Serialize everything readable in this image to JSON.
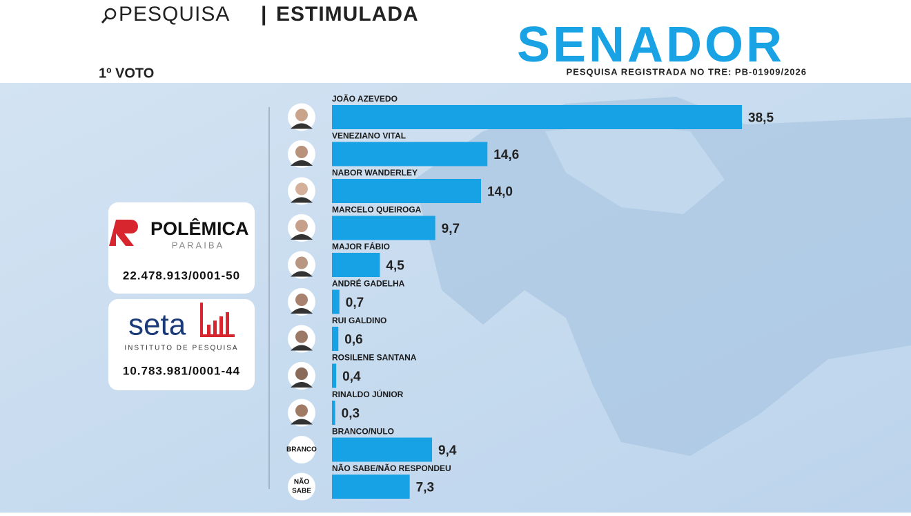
{
  "header": {
    "search": "PESQUISA",
    "separator": "|",
    "kind": "ESTIMULADA",
    "office": "SENADOR",
    "registration": "PESQUISA REGISTRADA NO TRE: PB-01909/2026",
    "round": "1º VOTO"
  },
  "sponsors": [
    {
      "name": "POLÊMICA",
      "sub": "PARAIBA",
      "id": "22.478.913/0001-50"
    },
    {
      "name": "seta",
      "sub": "INSTITUTO DE PESQUISA",
      "id": "10.783.981/0001-44"
    }
  ],
  "badges": [
    {
      "lines": [
        "BRANCO"
      ]
    },
    {
      "lines": [
        "NÃO",
        "SABE"
      ]
    }
  ],
  "chart_data": {
    "type": "bar",
    "orientation": "horizontal",
    "color": "#17a2e5",
    "categories": [
      "JOÃO AZEVEDO",
      "VENEZIANO VITAL",
      "NABOR WANDERLEY",
      "MARCELO QUEIROGA",
      "MAJOR FÁBIO",
      "ANDRÉ GADELHA",
      "RUI GALDINO",
      "ROSILENE SANTANA",
      "RINALDO JÚNIOR",
      "BRANCO/NULO",
      "NÃO SABE/NÃO RESPONDEU"
    ],
    "values": [
      38.5,
      14.6,
      14.0,
      9.7,
      4.5,
      0.7,
      0.6,
      0.4,
      0.3,
      9.4,
      7.3
    ],
    "value_labels": [
      "38,5",
      "14,6",
      "14,0",
      "9,7",
      "4,5",
      "0,7",
      "0,6",
      "0,4",
      "0,3",
      "9,4",
      "7,3"
    ]
  }
}
